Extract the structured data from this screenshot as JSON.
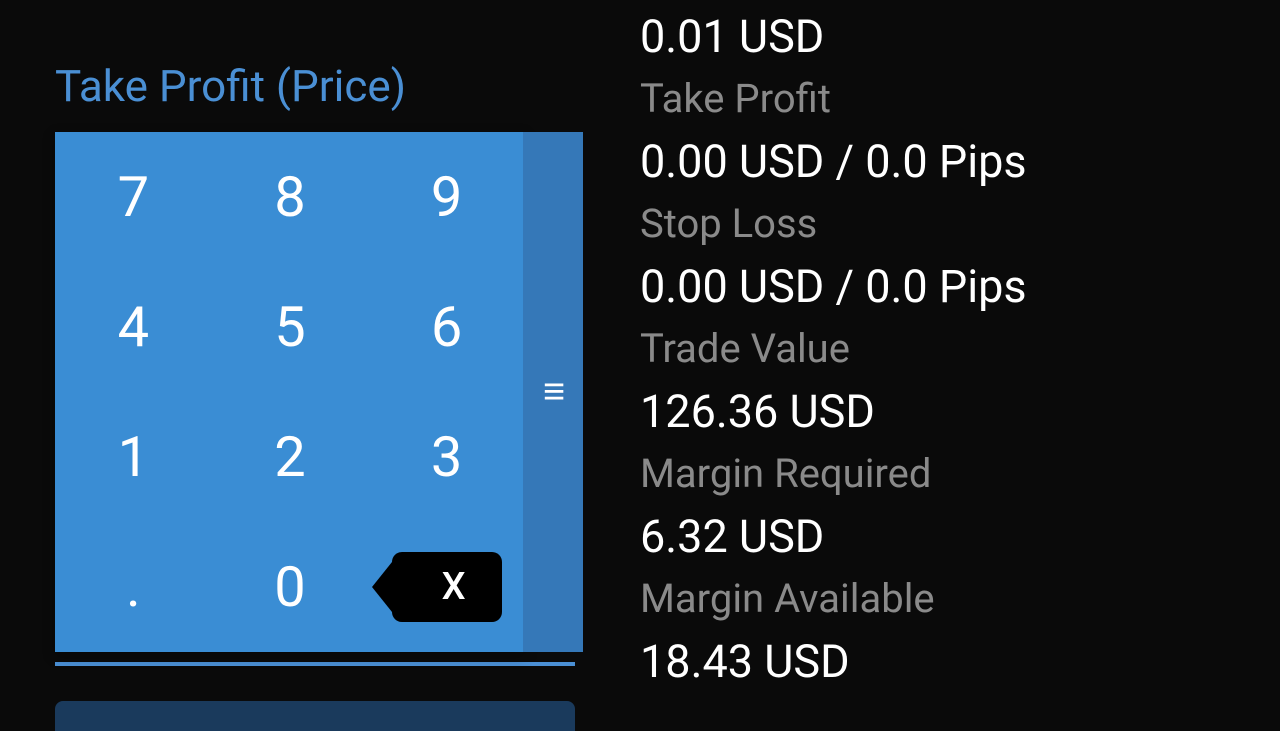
{
  "field": {
    "label": "Take Profit (Price)",
    "accent_color": "#4a8fd4"
  },
  "keypad": {
    "background_color": "#3a8dd4",
    "edge_color": "#3578b8",
    "keys": {
      "r0c0": "7",
      "r0c1": "8",
      "r0c2": "9",
      "r1c0": "4",
      "r1c1": "5",
      "r1c2": "6",
      "r2c0": "1",
      "r2c1": "2",
      "r2c2": "3",
      "r3c0": ".",
      "r3c1": "0",
      "backspace": "X"
    },
    "drag_handle": "≡"
  },
  "info": {
    "top_value": "0.01 USD",
    "take_profit": {
      "label": "Take Profit",
      "value": "0.00 USD / 0.0 Pips"
    },
    "stop_loss": {
      "label": "Stop Loss",
      "value": "0.00 USD / 0.0 Pips"
    },
    "trade_value": {
      "label": "Trade Value",
      "value": "126.36 USD"
    },
    "margin_required": {
      "label": "Margin Required",
      "value": "6.32 USD"
    },
    "margin_available": {
      "label": "Margin Available",
      "value": "18.43 USD"
    }
  },
  "colors": {
    "background": "#0a0a0a",
    "text_primary": "#ffffff",
    "text_secondary": "#8a8a8a"
  }
}
